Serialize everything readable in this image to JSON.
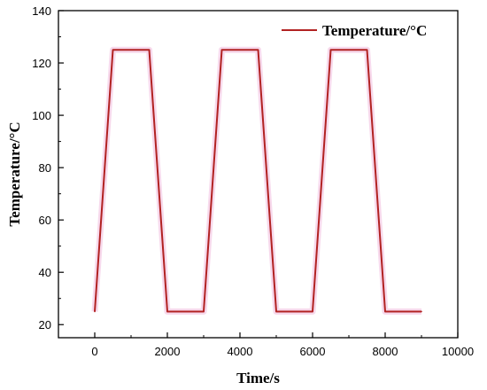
{
  "chart_data": {
    "type": "line",
    "xlabel": "Time/s",
    "ylabel": "Temperature/°C",
    "xlim": [
      -1000,
      10000
    ],
    "ylim": [
      15,
      140
    ],
    "xticks": [
      0,
      2000,
      4000,
      6000,
      8000,
      10000
    ],
    "yticks": [
      20,
      40,
      60,
      80,
      100,
      120,
      140
    ],
    "grid": false,
    "legend_position": "top-right",
    "series": [
      {
        "name": "Temperature/°C",
        "color": "#b22222",
        "x": [
          0,
          500,
          1500,
          2000,
          3000,
          3500,
          4500,
          5000,
          6000,
          6500,
          7500,
          8000,
          9000
        ],
        "y": [
          25,
          125,
          125,
          25,
          25,
          125,
          125,
          25,
          25,
          125,
          125,
          25,
          25
        ]
      }
    ]
  }
}
